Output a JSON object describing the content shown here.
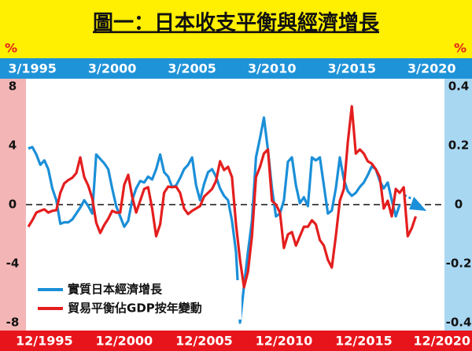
{
  "chart_data": {
    "type": "line",
    "title": "圖一：日本收支平衡與經濟增長",
    "y_label": "%",
    "y2_label": "%",
    "x": [
      1994.75,
      1995,
      1995.25,
      1995.5,
      1995.75,
      1996,
      1996.25,
      1996.5,
      1996.75,
      1997,
      1997.25,
      1997.5,
      1997.75,
      1998,
      1998.25,
      1998.5,
      1998.75,
      1999,
      1999.25,
      1999.5,
      1999.75,
      2000,
      2000.25,
      2000.5,
      2000.75,
      2001,
      2001.25,
      2001.5,
      2001.75,
      2002,
      2002.25,
      2002.5,
      2002.75,
      2003,
      2003.25,
      2003.5,
      2003.75,
      2004,
      2004.25,
      2004.5,
      2004.75,
      2005,
      2005.25,
      2005.5,
      2005.75,
      2006,
      2006.25,
      2006.5,
      2006.75,
      2007,
      2007.25,
      2007.5,
      2007.75,
      2008,
      2008.25,
      2008.5,
      2008.75,
      2009,
      2009.25,
      2009.5,
      2009.75,
      2010,
      2010.25,
      2010.5,
      2010.75,
      2011,
      2011.25,
      2011.5,
      2011.75,
      2012,
      2012.25,
      2012.5,
      2012.75,
      2013,
      2013.25,
      2013.5,
      2013.75,
      2014,
      2014.25,
      2014.5,
      2014.75,
      2015,
      2015.25,
      2015.5,
      2015.75,
      2016,
      2016.25,
      2016.5,
      2016.75,
      2017,
      2017.25,
      2017.5,
      2017.75,
      2018,
      2018.25,
      2018.5,
      2018.75,
      2019,
      2019.25
    ],
    "series": [
      {
        "name": "實質日本經濟增長",
        "color": "#1b8fd8",
        "axis": "y",
        "values": [
          3.8,
          3.9,
          3.4,
          2.7,
          3.0,
          2.4,
          1.1,
          0.3,
          -1.3,
          -1.2,
          -1.2,
          -1.0,
          -0.6,
          -0.2,
          0.3,
          -0.1,
          -0.6,
          3.4,
          3.1,
          2.8,
          2.4,
          1.1,
          -0.1,
          -0.8,
          -1.5,
          -1.1,
          0.3,
          1.1,
          1.6,
          1.5,
          1.9,
          1.7,
          2.4,
          3.4,
          2.2,
          1.9,
          1.2,
          1.3,
          1.8,
          2.4,
          2.7,
          3.2,
          1.3,
          0.3,
          1.4,
          2.2,
          2.4,
          1.9,
          1.1,
          0.6,
          0.3,
          -1.1,
          -3.2,
          -8.0,
          -5.5,
          -3.2,
          -1.1,
          3.2,
          4.5,
          5.9,
          3.7,
          1.1,
          -0.8,
          -0.6,
          0.3,
          2.9,
          3.2,
          1.3,
          0.1,
          0.5,
          -0.1,
          3.2,
          3.0,
          3.2,
          1.3,
          -0.6,
          -0.4,
          1.1,
          3.2,
          1.7,
          0.9,
          0.6,
          0.8,
          1.2,
          1.5,
          2.0,
          2.6,
          2.4,
          1.6,
          1.1,
          1.5,
          0.3,
          -0.8,
          0.0,
          null,
          null,
          null,
          null,
          null
        ]
      },
      {
        "name": "貿易平衡佔GDP按年變動",
        "color": "#e41e1e",
        "axis": "y2",
        "values": [
          -0.075,
          -0.053,
          -0.027,
          -0.021,
          -0.016,
          -0.027,
          -0.021,
          -0.019,
          0.04,
          0.072,
          0.083,
          0.091,
          0.107,
          0.16,
          0.093,
          0.064,
          0.021,
          -0.061,
          -0.096,
          -0.069,
          -0.048,
          -0.021,
          -0.027,
          -0.027,
          0.067,
          0.101,
          0.027,
          -0.027,
          0.013,
          0.053,
          0.059,
          -0.013,
          -0.107,
          -0.067,
          0.04,
          0.061,
          0.059,
          0.061,
          0.04,
          -0.013,
          -0.032,
          -0.021,
          -0.013,
          -0.005,
          0.027,
          0.04,
          0.053,
          0.08,
          0.147,
          0.117,
          0.128,
          0.093,
          -0.067,
          -0.187,
          -0.28,
          -0.227,
          -0.107,
          0.093,
          0.128,
          0.173,
          0.187,
          0.013,
          0,
          -0.027,
          -0.147,
          -0.101,
          -0.093,
          -0.139,
          -0.107,
          -0.075,
          -0.075,
          -0.053,
          -0.067,
          -0.12,
          -0.139,
          -0.187,
          -0.213,
          -0.107,
          0.013,
          0.053,
          0.213,
          0.333,
          0.173,
          0.187,
          0.173,
          0.147,
          0.139,
          0.12,
          0.093,
          -0.013,
          0.013,
          -0.04,
          0.053,
          0.04,
          0.059,
          -0.107,
          -0.08,
          -0.04,
          null
        ]
      }
    ],
    "xlim": [
      1994.6,
      2020.8
    ],
    "xticks": [
      {
        "value": 1995,
        "label": "3/1995"
      },
      {
        "value": 2000,
        "label": "3/2000"
      },
      {
        "value": 2005,
        "label": "3/2005"
      },
      {
        "value": 2010,
        "label": "3/2010"
      },
      {
        "value": 2015,
        "label": "3/2015"
      },
      {
        "value": 2020,
        "label": "3/2020"
      }
    ],
    "x2ticks": [
      {
        "value": 1995.75,
        "label": "12/1995"
      },
      {
        "value": 2000.75,
        "label": "12/2000"
      },
      {
        "value": 2005.75,
        "label": "12/2005"
      },
      {
        "value": 2010.75,
        "label": "12/2010"
      },
      {
        "value": 2015.75,
        "label": "12/2015"
      },
      {
        "value": 2020.75,
        "label": "12/2020"
      }
    ],
    "ylim": [
      -8,
      8
    ],
    "yticks": [
      -8,
      -4,
      0,
      4,
      8
    ],
    "y2lim": [
      -0.4,
      0.4
    ],
    "y2ticks": [
      -0.4,
      -0.2,
      0,
      0.2,
      0.4
    ],
    "zero_line": true,
    "legend": "lower left"
  }
}
